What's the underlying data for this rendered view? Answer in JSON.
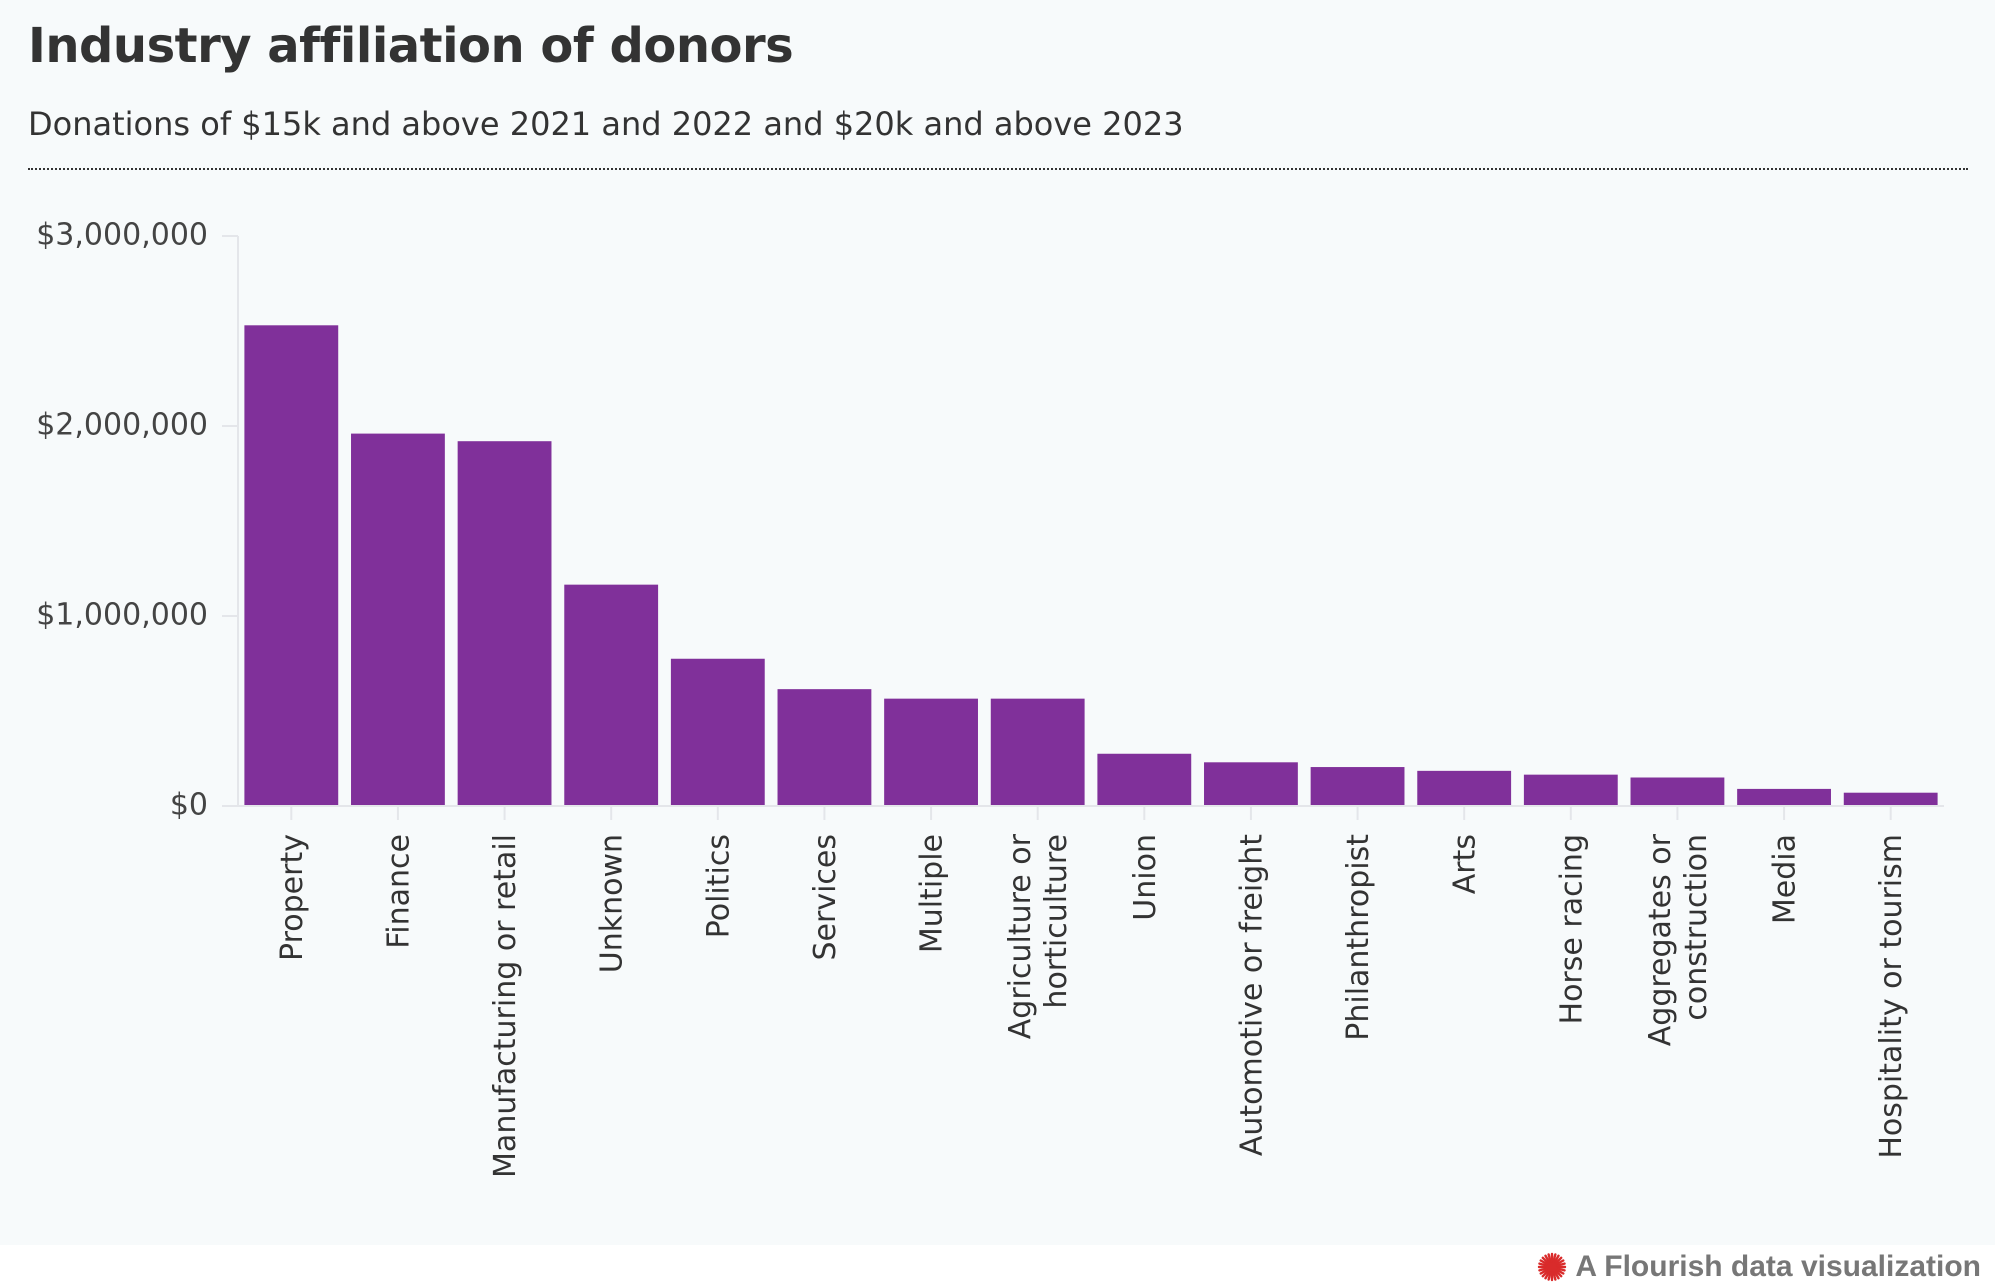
{
  "chart_data": {
    "type": "bar",
    "title": "Industry affiliation of donors",
    "subtitle": "Donations of $15k and above 2021 and 2022 and $20k and above 2023",
    "xlabel": "",
    "ylabel": "",
    "ylim": [
      0,
      3000000
    ],
    "yticks": [
      0,
      1000000,
      2000000,
      3000000
    ],
    "ytick_labels": [
      "$0",
      "$1,000,000",
      "$2,000,000",
      "$3,000,000"
    ],
    "grid": false,
    "categories": [
      "Property",
      "Finance",
      "Manufacturing or retail",
      "Unknown",
      "Politics",
      "Services",
      "Multiple",
      "Agriculture or horticulture",
      "Union",
      "Automotive or freight",
      "Philanthropist",
      "Arts",
      "Horse racing",
      "Aggregates or construction",
      "Media",
      "Hospitality or tourism"
    ],
    "category_lines": [
      [
        "Property"
      ],
      [
        "Finance"
      ],
      [
        "Manufacturing or retail"
      ],
      [
        "Unknown"
      ],
      [
        "Politics"
      ],
      [
        "Services"
      ],
      [
        "Multiple"
      ],
      [
        "Agriculture or",
        "horticulture"
      ],
      [
        "Union"
      ],
      [
        "Automotive or freight"
      ],
      [
        "Philanthropist"
      ],
      [
        "Arts"
      ],
      [
        "Horse racing"
      ],
      [
        "Aggregates or",
        "construction"
      ],
      [
        "Media"
      ],
      [
        "Hospitality or tourism"
      ]
    ],
    "values": [
      2530000,
      1960000,
      1920000,
      1165000,
      775000,
      615000,
      565000,
      565000,
      275000,
      230000,
      205000,
      185000,
      165000,
      150000,
      90000,
      70000
    ],
    "bar_color": "#80309a"
  },
  "credit": {
    "text": "A Flourish data visualization",
    "icon": "flourish-logo-icon",
    "icon_color": "#d92b2b"
  }
}
